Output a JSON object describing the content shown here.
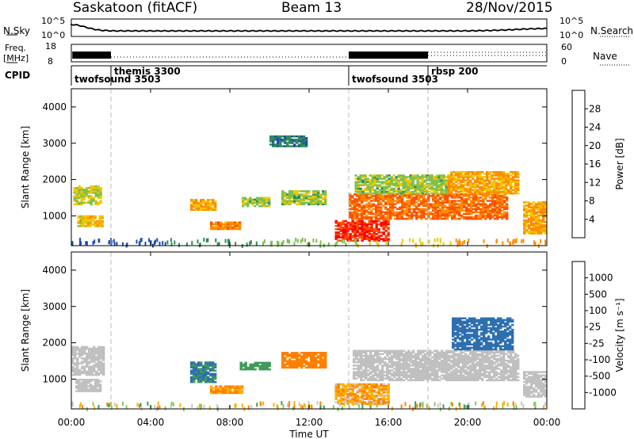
{
  "header": {
    "title": "Saskatoon (fitACF)",
    "beam": "Beam 13",
    "date": "28/Nov/2015"
  },
  "noise_panel": {
    "left_label": "N.Sky",
    "right_label": "N.Search",
    "left_ticks": [
      "10^5",
      "10^0"
    ],
    "right_ticks": [
      "10^5",
      "10^0"
    ]
  },
  "freq_panel": {
    "left_label_line1": "Freq.",
    "left_label_line2": "[MHz]",
    "left_ticks": [
      "18",
      "8"
    ],
    "right_label": "Nave",
    "right_ticks": [
      "60",
      "0"
    ]
  },
  "cpid": {
    "label": "CPID",
    "entries": [
      {
        "name": "twofsound 3503",
        "start_hour": 0.0,
        "row": 2
      },
      {
        "name": "themis 3300",
        "start_hour": 2.0,
        "row": 1
      },
      {
        "name": "twofsound 3503",
        "start_hour": 14.0,
        "row": 2
      },
      {
        "name": "rbsp 200",
        "start_hour": 18.0,
        "row": 1
      }
    ]
  },
  "colors": {
    "power_scale": [
      "#0000ff",
      "#1f4fa8",
      "#2e8b57",
      "#7fbf4f",
      "#f0c800",
      "#ff8c00",
      "#ff5000",
      "#ff0000"
    ],
    "velocity_scale": [
      "#1a3d9e",
      "#2e6fb0",
      "#3f9a5a",
      "#7ed04a",
      "#c8c8c8",
      "#ffb000",
      "#ff8000",
      "#ff4a00",
      "#ff0000"
    ],
    "ground_scatter": "#c0c0c0"
  },
  "colorbars": {
    "power": {
      "title": "Power [dB]",
      "ticks": [
        "28",
        "24",
        "20",
        "16",
        "12",
        "8",
        "4"
      ]
    },
    "velocity": {
      "title": "Velocity [m s⁻¹]",
      "ticks": [
        "1000",
        "500",
        "100",
        "25",
        "-25",
        "-100",
        "-500",
        "-1000"
      ]
    }
  },
  "chart_data": [
    {
      "type": "heatmap",
      "name": "power",
      "ylabel": "Slant Range [km]",
      "xlim": [
        0,
        24
      ],
      "ylim": [
        180,
        4500
      ],
      "yticks": [
        "1000",
        "2000",
        "3000",
        "4000"
      ],
      "clim_db": [
        0,
        32
      ],
      "regions": [
        {
          "t": [
            0.1,
            1.5
          ],
          "r": [
            1300,
            1800
          ],
          "db": 16
        },
        {
          "t": [
            0.3,
            1.6
          ],
          "r": [
            700,
            1000
          ],
          "db": 18
        },
        {
          "t": [
            6.0,
            7.3
          ],
          "r": [
            1150,
            1450
          ],
          "db": 20
        },
        {
          "t": [
            7.0,
            8.5
          ],
          "r": [
            620,
            820
          ],
          "db": 22
        },
        {
          "t": [
            8.6,
            10.0
          ],
          "r": [
            1250,
            1500
          ],
          "db": 14
        },
        {
          "t": [
            10.6,
            12.8
          ],
          "r": [
            1300,
            1700
          ],
          "db": 14
        },
        {
          "t": [
            10.0,
            11.8
          ],
          "r": [
            2900,
            3200
          ],
          "db": 8
        },
        {
          "t": [
            13.3,
            16.0
          ],
          "r": [
            300,
            850
          ],
          "db": 28
        },
        {
          "t": [
            14.0,
            22.0
          ],
          "r": [
            900,
            1600
          ],
          "db": 24
        },
        {
          "t": [
            14.3,
            19.0
          ],
          "r": [
            1600,
            2100
          ],
          "db": 14
        },
        {
          "t": [
            19.0,
            22.5
          ],
          "r": [
            1600,
            2200
          ],
          "db": 20
        },
        {
          "t": [
            22.8,
            24.0
          ],
          "r": [
            500,
            1400
          ],
          "db": 20
        }
      ]
    },
    {
      "type": "heatmap",
      "name": "velocity",
      "ylabel": "Slant Range [km]",
      "xlabel": "Time UT",
      "xlim": [
        0,
        24
      ],
      "xticks": [
        "00:00",
        "04:00",
        "08:00",
        "12:00",
        "16:00",
        "20:00",
        "00:00"
      ],
      "ylim": [
        180,
        4500
      ],
      "yticks": [
        "1000",
        "2000",
        "3000",
        "4000"
      ],
      "regions": [
        {
          "t": [
            0.0,
            1.6
          ],
          "r": [
            1100,
            1900
          ],
          "v": 0,
          "gs": true
        },
        {
          "t": [
            0.2,
            1.5
          ],
          "r": [
            650,
            1000
          ],
          "v": 0,
          "gs": true
        },
        {
          "t": [
            6.0,
            7.3
          ],
          "r": [
            900,
            1450
          ],
          "v": 500
        },
        {
          "t": [
            7.0,
            8.6
          ],
          "r": [
            600,
            800
          ],
          "v": -120
        },
        {
          "t": [
            8.5,
            10.0
          ],
          "r": [
            1250,
            1450
          ],
          "v": 200
        },
        {
          "t": [
            10.6,
            12.8
          ],
          "r": [
            1300,
            1750
          ],
          "v": -300
        },
        {
          "t": [
            13.3,
            16.0
          ],
          "r": [
            300,
            850
          ],
          "v": -100
        },
        {
          "t": [
            14.2,
            22.5
          ],
          "r": [
            950,
            1800
          ],
          "v": 0,
          "gs": true
        },
        {
          "t": [
            19.2,
            22.3
          ],
          "r": [
            1800,
            2700
          ],
          "v": 700
        },
        {
          "t": [
            22.8,
            24.0
          ],
          "r": [
            500,
            1200
          ],
          "v": 0,
          "gs": true
        }
      ]
    }
  ]
}
